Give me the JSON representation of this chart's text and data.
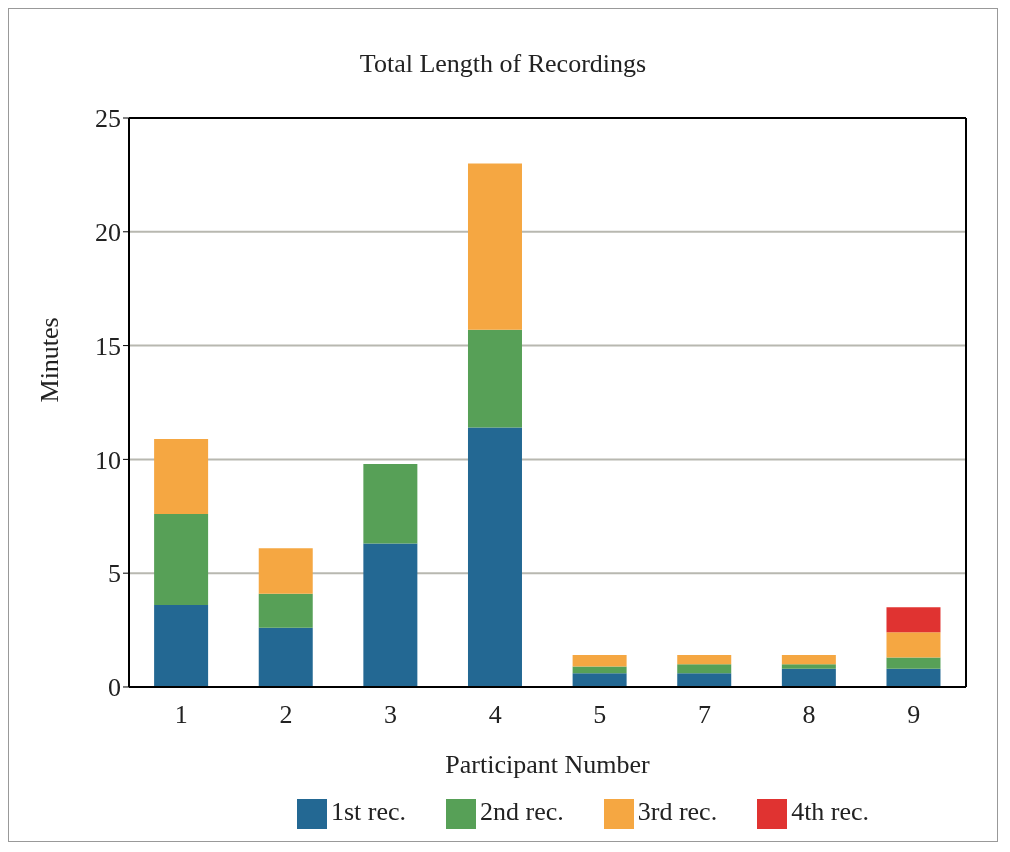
{
  "chart_data": {
    "type": "bar",
    "title": "Total Length of Recordings",
    "xlabel": "Participant Number",
    "ylabel": "Minutes",
    "categories": [
      "1",
      "2",
      "3",
      "4",
      "5",
      "7",
      "8",
      "9"
    ],
    "stacked": true,
    "series": [
      {
        "name": "1st rec.",
        "color": "#236893",
        "values": [
          3.6,
          2.6,
          6.3,
          11.4,
          0.6,
          0.6,
          0.8,
          0.8
        ]
      },
      {
        "name": "2nd rec.",
        "color": "#57a057",
        "values": [
          4.0,
          1.5,
          3.5,
          4.3,
          0.3,
          0.4,
          0.2,
          0.5
        ]
      },
      {
        "name": "3rd rec.",
        "color": "#f5a742",
        "values": [
          3.3,
          2.0,
          null,
          7.3,
          0.5,
          0.4,
          0.4,
          1.1
        ]
      },
      {
        "name": "4th rec.",
        "color": "#e03331",
        "values": [
          null,
          null,
          null,
          null,
          null,
          null,
          null,
          1.1
        ]
      }
    ],
    "ylim": [
      0,
      25
    ],
    "yticks": [
      0,
      5,
      10,
      15,
      20,
      25
    ],
    "grid": "y",
    "legend": "bottom"
  }
}
